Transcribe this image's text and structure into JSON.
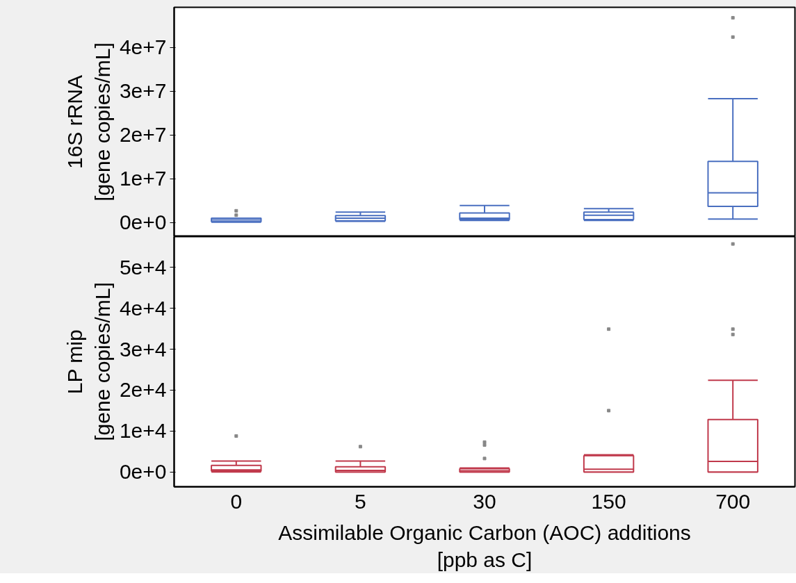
{
  "chart_data": [
    {
      "type": "box",
      "ylabel": "16S rRNA\n[gene copies/mL]",
      "categories": [
        "0",
        "5",
        "30",
        "150",
        "700"
      ],
      "tick_labels": "y",
      "color": "#4a6fc0",
      "ylim": [
        -3200000,
        49200000
      ],
      "yticks": [
        {
          "value": 0,
          "label": "0e+0"
        },
        {
          "value": 10000000,
          "label": "1e+7"
        },
        {
          "value": 20000000,
          "label": "2e+7"
        },
        {
          "value": 30000000,
          "label": "3e+7"
        },
        {
          "value": 40000000,
          "label": "4e+7"
        }
      ],
      "boxes": [
        {
          "low": 100000,
          "q1": 200000,
          "median": 600000,
          "q3": 1000000,
          "high": 1000000,
          "outliers": [
            2700000,
            1700000
          ]
        },
        {
          "low": 300000,
          "q1": 400000,
          "median": 1000000,
          "q3": 1600000,
          "high": 2400000
        },
        {
          "low": 500000,
          "q1": 700000,
          "median": 1000000,
          "q3": 2200000,
          "high": 3900000
        },
        {
          "low": 500000,
          "q1": 700000,
          "median": 1700000,
          "q3": 2400000,
          "high": 3200000
        },
        {
          "low": 800000,
          "q1": 3700000,
          "median": 6800000,
          "q3": 14000000,
          "high": 28300000,
          "outliers": [
            46800000,
            42400000
          ]
        }
      ]
    },
    {
      "type": "box",
      "ylabel": "LP mip\n[gene copies/mL]",
      "xlabel": "Assimilable Organic Carbon (AOC) additions\n[ppb as C]",
      "categories": [
        "0",
        "5",
        "30",
        "150",
        "700"
      ],
      "color": "#c0394b",
      "ylim": [
        -3600,
        57500
      ],
      "yticks": [
        {
          "value": 0,
          "label": "0e+0"
        },
        {
          "value": 10000,
          "label": "1e+4"
        },
        {
          "value": 20000,
          "label": "2e+4"
        },
        {
          "value": 30000,
          "label": "3e+4"
        },
        {
          "value": 40000,
          "label": "4e+4"
        },
        {
          "value": 50000,
          "label": "5e+4"
        }
      ],
      "boxes": [
        {
          "low": 0,
          "q1": 200,
          "median": 500,
          "q3": 1600,
          "high": 2700,
          "outliers": [
            8800
          ]
        },
        {
          "low": 0,
          "q1": 0,
          "median": 400,
          "q3": 1300,
          "high": 2700,
          "outliers": [
            6200
          ]
        },
        {
          "low": 0,
          "q1": 0,
          "median": 300,
          "q3": 800,
          "high": 1000,
          "outliers": [
            7300,
            6600,
            3300
          ]
        },
        {
          "low": 0,
          "q1": 0,
          "median": 700,
          "q3": 4000,
          "high": 4200,
          "outliers": [
            34900,
            15000
          ]
        },
        {
          "low": 0,
          "q1": 0,
          "median": 2600,
          "q3": 12800,
          "high": 22400,
          "outliers": [
            55700,
            34900,
            33600
          ]
        }
      ]
    }
  ]
}
